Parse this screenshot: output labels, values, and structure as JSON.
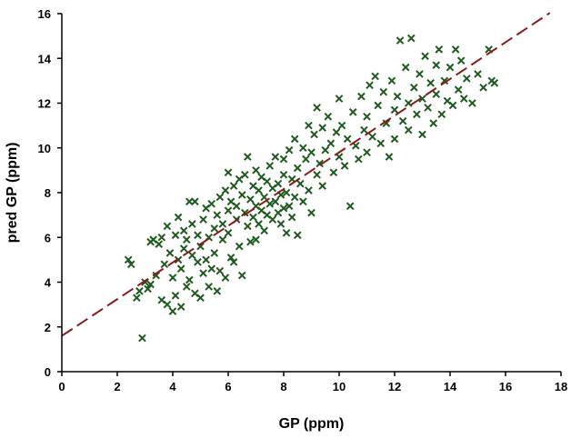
{
  "chart_data": {
    "type": "scatter",
    "title": "",
    "xlabel": "GP (ppm)",
    "ylabel": "pred GP (ppm)",
    "xlim": [
      0,
      18
    ],
    "ylim": [
      0,
      16
    ],
    "xticks": [
      "0",
      "2",
      "4",
      "6",
      "8",
      "10",
      "12",
      "14",
      "16",
      "18"
    ],
    "yticks": [
      "0",
      "2",
      "4",
      "6",
      "8",
      "10",
      "12",
      "14",
      "16"
    ],
    "grid": false,
    "legend": "none",
    "marker": "x",
    "marker_color": "#1f5a1f",
    "trendline": {
      "style": "dashed",
      "color": "#8b1a1a",
      "intercept": 1.6,
      "slope": 0.82,
      "x_range": [
        0,
        17.6
      ]
    },
    "series": [
      {
        "points": [
          [
            2.4,
            5.0
          ],
          [
            2.5,
            4.8
          ],
          [
            2.7,
            3.3
          ],
          [
            2.8,
            3.6
          ],
          [
            2.9,
            1.5
          ],
          [
            3.0,
            4.0
          ],
          [
            3.1,
            3.7
          ],
          [
            3.2,
            5.8
          ],
          [
            3.2,
            3.9
          ],
          [
            3.3,
            5.9
          ],
          [
            3.4,
            4.3
          ],
          [
            3.5,
            5.7
          ],
          [
            3.6,
            6.0
          ],
          [
            3.6,
            3.2
          ],
          [
            3.7,
            4.8
          ],
          [
            3.8,
            6.5
          ],
          [
            3.8,
            3.0
          ],
          [
            3.9,
            5.3
          ],
          [
            4.0,
            2.7
          ],
          [
            4.0,
            4.2
          ],
          [
            4.1,
            6.1
          ],
          [
            4.1,
            3.4
          ],
          [
            4.2,
            5.0
          ],
          [
            4.2,
            6.9
          ],
          [
            4.3,
            4.6
          ],
          [
            4.3,
            2.9
          ],
          [
            4.4,
            5.5
          ],
          [
            4.4,
            6.3
          ],
          [
            4.5,
            3.8
          ],
          [
            4.5,
            5.9
          ],
          [
            4.6,
            4.1
          ],
          [
            4.6,
            7.6
          ],
          [
            4.7,
            5.2
          ],
          [
            4.7,
            6.6
          ],
          [
            4.8,
            3.5
          ],
          [
            4.8,
            7.6
          ],
          [
            4.9,
            4.9
          ],
          [
            4.9,
            6.1
          ],
          [
            5.0,
            5.6
          ],
          [
            5.0,
            3.3
          ],
          [
            5.1,
            4.4
          ],
          [
            5.1,
            6.8
          ],
          [
            5.2,
            5.0
          ],
          [
            5.2,
            7.3
          ],
          [
            5.3,
            3.8
          ],
          [
            5.3,
            6.0
          ],
          [
            5.4,
            7.5
          ],
          [
            5.4,
            4.6
          ],
          [
            5.5,
            6.4
          ],
          [
            5.5,
            5.3
          ],
          [
            5.6,
            7.0
          ],
          [
            5.6,
            3.6
          ],
          [
            5.7,
            4.5
          ],
          [
            5.7,
            7.8
          ],
          [
            5.8,
            5.9
          ],
          [
            5.8,
            6.6
          ],
          [
            5.9,
            8.1
          ],
          [
            5.9,
            4.2
          ],
          [
            6.0,
            8.9
          ],
          [
            6.0,
            7.2
          ],
          [
            6.0,
            6.2
          ],
          [
            6.1,
            5.1
          ],
          [
            6.1,
            7.6
          ],
          [
            6.2,
            8.3
          ],
          [
            6.2,
            4.9
          ],
          [
            6.3,
            6.8
          ],
          [
            6.3,
            7.4
          ],
          [
            6.4,
            8.6
          ],
          [
            6.4,
            5.6
          ],
          [
            6.5,
            7.9
          ],
          [
            6.5,
            4.3
          ],
          [
            6.6,
            7.1
          ],
          [
            6.6,
            8.8
          ],
          [
            6.7,
            6.5
          ],
          [
            6.7,
            9.6
          ],
          [
            6.8,
            7.7
          ],
          [
            6.8,
            5.8
          ],
          [
            6.9,
            8.3
          ],
          [
            6.9,
            6.9
          ],
          [
            7.0,
            7.4
          ],
          [
            7.0,
            9.0
          ],
          [
            7.0,
            5.9
          ],
          [
            7.1,
            8.1
          ],
          [
            7.1,
            6.6
          ],
          [
            7.2,
            7.2
          ],
          [
            7.2,
            8.7
          ],
          [
            7.3,
            7.8
          ],
          [
            7.3,
            6.3
          ],
          [
            7.4,
            8.5
          ],
          [
            7.4,
            7.0
          ],
          [
            7.5,
            9.2
          ],
          [
            7.5,
            7.5
          ],
          [
            7.6,
            6.8
          ],
          [
            7.6,
            8.2
          ],
          [
            7.7,
            7.6
          ],
          [
            7.7,
            9.6
          ],
          [
            7.8,
            7.1
          ],
          [
            7.8,
            8.4
          ],
          [
            7.9,
            6.6
          ],
          [
            7.9,
            7.9
          ],
          [
            8.0,
            9.5
          ],
          [
            8.0,
            7.3
          ],
          [
            8.0,
            8.8
          ],
          [
            8.1,
            6.2
          ],
          [
            8.1,
            8.0
          ],
          [
            8.2,
            9.9
          ],
          [
            8.2,
            7.4
          ],
          [
            8.3,
            8.6
          ],
          [
            8.3,
            6.9
          ],
          [
            8.4,
            10.4
          ],
          [
            8.4,
            7.8
          ],
          [
            8.5,
            9.1
          ],
          [
            8.5,
            6.1
          ],
          [
            8.6,
            8.4
          ],
          [
            8.7,
            10.0
          ],
          [
            8.7,
            7.6
          ],
          [
            8.8,
            9.5
          ],
          [
            8.9,
            11.0
          ],
          [
            8.9,
            8.1
          ],
          [
            9.0,
            9.8
          ],
          [
            9.0,
            7.1
          ],
          [
            9.1,
            10.6
          ],
          [
            9.2,
            8.8
          ],
          [
            9.2,
            11.8
          ],
          [
            9.3,
            9.3
          ],
          [
            9.4,
            10.9
          ],
          [
            9.4,
            8.3
          ],
          [
            9.5,
            9.9
          ],
          [
            9.6,
            11.4
          ],
          [
            9.7,
            10.2
          ],
          [
            9.8,
            8.9
          ],
          [
            9.9,
            10.7
          ],
          [
            10.0,
            12.2
          ],
          [
            10.0,
            9.6
          ],
          [
            10.1,
            11.0
          ],
          [
            10.2,
            9.2
          ],
          [
            10.3,
            10.4
          ],
          [
            10.4,
            7.4
          ],
          [
            10.5,
            11.6
          ],
          [
            10.6,
            10.1
          ],
          [
            10.7,
            9.5
          ],
          [
            10.8,
            12.3
          ],
          [
            10.9,
            10.8
          ],
          [
            11.0,
            11.4
          ],
          [
            11.0,
            9.8
          ],
          [
            11.1,
            12.8
          ],
          [
            11.2,
            10.5
          ],
          [
            11.3,
            13.2
          ],
          [
            11.4,
            11.9
          ],
          [
            11.5,
            10.2
          ],
          [
            11.6,
            12.5
          ],
          [
            11.7,
            11.1
          ],
          [
            11.8,
            9.6
          ],
          [
            11.9,
            13.0
          ],
          [
            12.0,
            11.7
          ],
          [
            12.0,
            10.4
          ],
          [
            12.1,
            12.3
          ],
          [
            12.2,
            14.8
          ],
          [
            12.3,
            11.2
          ],
          [
            12.4,
            13.6
          ],
          [
            12.5,
            12.0
          ],
          [
            12.5,
            10.8
          ],
          [
            12.6,
            14.9
          ],
          [
            12.7,
            12.7
          ],
          [
            12.8,
            11.5
          ],
          [
            12.9,
            13.3
          ],
          [
            13.0,
            10.6
          ],
          [
            13.0,
            12.2
          ],
          [
            13.1,
            14.1
          ],
          [
            13.2,
            11.8
          ],
          [
            13.3,
            12.9
          ],
          [
            13.4,
            11.1
          ],
          [
            13.5,
            13.7
          ],
          [
            13.5,
            12.4
          ],
          [
            13.6,
            14.4
          ],
          [
            13.7,
            11.5
          ],
          [
            13.8,
            13.0
          ],
          [
            13.9,
            12.1
          ],
          [
            14.0,
            13.6
          ],
          [
            14.1,
            11.9
          ],
          [
            14.2,
            14.4
          ],
          [
            14.3,
            12.6
          ],
          [
            14.4,
            13.9
          ],
          [
            14.5,
            12.2
          ],
          [
            14.6,
            13.1
          ],
          [
            14.8,
            12.0
          ],
          [
            15.0,
            13.3
          ],
          [
            15.2,
            12.7
          ],
          [
            15.4,
            14.4
          ],
          [
            15.5,
            13.0
          ],
          [
            15.6,
            12.9
          ]
        ]
      }
    ]
  }
}
